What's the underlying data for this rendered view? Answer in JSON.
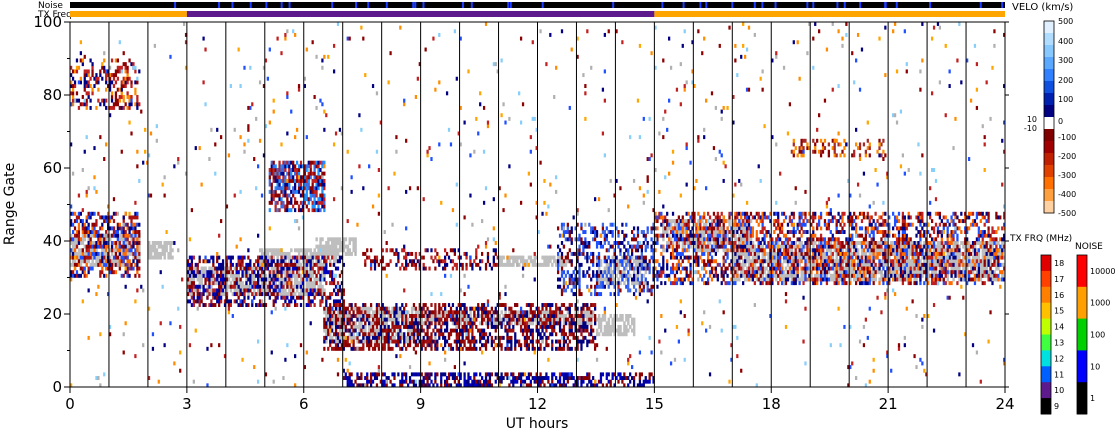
{
  "chart_data": {
    "type": "scatter",
    "subtype": "SuperDARN range-time-velocity plot",
    "title": "",
    "xlabel": "UT hours",
    "ylabel": "Range Gate",
    "xlim": [
      0,
      24
    ],
    "ylim": [
      0,
      100
    ],
    "xticks": [
      "0",
      "3",
      "6",
      "9",
      "12",
      "15",
      "18",
      "21",
      "24"
    ],
    "yticks": [
      "0",
      "20",
      "40",
      "60",
      "80",
      "100"
    ],
    "minor_vertical_lines_ut": [
      1,
      2,
      3,
      4,
      5,
      6,
      7,
      8,
      9,
      10,
      11,
      12,
      13,
      14,
      15,
      16,
      17,
      18,
      19,
      20,
      21,
      22,
      23
    ],
    "top_bars": [
      {
        "label": "Noise",
        "segments": [
          {
            "from": 0,
            "to": 24,
            "color": "#000000"
          }
        ]
      },
      {
        "label": "TX Freq",
        "segments": [
          {
            "from": 0,
            "to": 3,
            "color": "#ffa500"
          },
          {
            "from": 3,
            "to": 15,
            "color": "#5c1a8c"
          },
          {
            "from": 15,
            "to": 24,
            "color": "#ffa500"
          }
        ]
      }
    ],
    "ground_scatter_bands": [
      {
        "t0": 0,
        "t1": 1.8,
        "g0": 33,
        "g1": 42
      },
      {
        "t0": 3,
        "t1": 6.5,
        "g0": 25,
        "g1": 33
      },
      {
        "t0": 4.8,
        "t1": 6.8,
        "g0": 33,
        "g1": 38
      },
      {
        "t0": 6.3,
        "t1": 7.3,
        "g0": 36,
        "g1": 41
      },
      {
        "t0": 6.5,
        "t1": 9,
        "g0": 12,
        "g1": 22
      },
      {
        "t0": 9,
        "t1": 13.5,
        "g0": 17,
        "g1": 21
      },
      {
        "t0": 13.5,
        "t1": 14.5,
        "g0": 14,
        "g1": 20
      },
      {
        "t0": 13.5,
        "t1": 14.8,
        "g0": 28,
        "g1": 36
      },
      {
        "t0": 15.2,
        "t1": 17.5,
        "g0": 37,
        "g1": 46
      },
      {
        "t0": 17,
        "t1": 24,
        "g0": 29,
        "g1": 40
      },
      {
        "t0": 2,
        "t1": 2.6,
        "g0": 35,
        "g1": 40
      },
      {
        "t0": 11,
        "t1": 12.8,
        "g0": 33,
        "g1": 36
      }
    ],
    "scatter_regions": [
      {
        "t0": 0,
        "t1": 1.8,
        "g0": 30,
        "g1": 48,
        "density": 0.5,
        "colors": [
          "#8b0000",
          "#aa1111",
          "#000080",
          "#1e50ff",
          "#ff6a00"
        ]
      },
      {
        "t0": 0,
        "t1": 1.8,
        "g0": 76,
        "g1": 90,
        "density": 0.35,
        "colors": [
          "#8b0000",
          "#000080",
          "#ff8c00",
          "#c02020"
        ]
      },
      {
        "t0": 3,
        "t1": 7,
        "g0": 22,
        "g1": 36,
        "density": 0.45,
        "colors": [
          "#8b0000",
          "#000080",
          "#0000c0",
          "#b22222"
        ]
      },
      {
        "t0": 5.1,
        "t1": 6.5,
        "g0": 48,
        "g1": 62,
        "density": 0.7,
        "colors": [
          "#8b0000",
          "#1e90ff",
          "#4169e1",
          "#000080",
          "#c02020"
        ]
      },
      {
        "t0": 6.5,
        "t1": 13.5,
        "g0": 10,
        "g1": 23,
        "density": 0.5,
        "colors": [
          "#8b0000",
          "#000080",
          "#a01010"
        ]
      },
      {
        "t0": 7.5,
        "t1": 11,
        "g0": 32,
        "g1": 38,
        "density": 0.35,
        "colors": [
          "#8b0000",
          "#000080",
          "#c02020"
        ]
      },
      {
        "t0": 12.5,
        "t1": 15,
        "g0": 25,
        "g1": 45,
        "density": 0.4,
        "colors": [
          "#000080",
          "#1e50ff",
          "#8b0000",
          "#4169e1"
        ]
      },
      {
        "t0": 15,
        "t1": 24,
        "g0": 28,
        "g1": 48,
        "density": 0.45,
        "colors": [
          "#8b0000",
          "#000080",
          "#c02020",
          "#1e50ff",
          "#ff6a00"
        ]
      },
      {
        "t0": 7,
        "t1": 15,
        "g0": 0,
        "g1": 4,
        "density": 0.55,
        "colors": [
          "#000080",
          "#8b0000",
          "#0000c0"
        ]
      },
      {
        "t0": 18.5,
        "t1": 21,
        "g0": 63,
        "g1": 68,
        "density": 0.3,
        "colors": [
          "#8b0000",
          "#a52a2a",
          "#ff8c00"
        ]
      },
      {
        "t0": 0,
        "t1": 24,
        "g0": 0,
        "g1": 100,
        "density": 0.02,
        "colors": [
          "#8b0000",
          "#000080",
          "#ff8c00",
          "#ffa500",
          "#87cefa",
          "#b0b0b0",
          "#c02020",
          "#1e50ff"
        ]
      }
    ],
    "velo_colorbar": {
      "title": "VELO (km/s)",
      "tick_labels": [
        "500",
        "400",
        "300",
        "200",
        "100",
        "10",
        "0",
        "-10",
        "-100",
        "-200",
        "-300",
        "-400",
        "-500"
      ],
      "colors_top_to_bottom": [
        "#e0f0ff",
        "#b0dcff",
        "#87c8ff",
        "#5aa8ff",
        "#3080ff",
        "#1050e0",
        "#0020b0",
        "#000080",
        "#ffffff",
        "#800000",
        "#a00000",
        "#c02000",
        "#e04000",
        "#ff7000",
        "#ffa040",
        "#ffd0a0"
      ]
    },
    "txfrq_colorbar": {
      "title": "TX FRQ (MHz)",
      "tick_labels": [
        "18",
        "17",
        "16",
        "15",
        "14",
        "13",
        "12",
        "11",
        "10",
        "9"
      ],
      "colors_top_to_bottom": [
        "#e00000",
        "#ff4000",
        "#ff8000",
        "#ffc000",
        "#c0ff00",
        "#40ff40",
        "#00e0e0",
        "#0060ff",
        "#5c1a8c",
        "#000000"
      ]
    },
    "noise_colorbar": {
      "title": "NOISE",
      "tick_labels": [
        "10000",
        "1000",
        "100",
        "10",
        "1"
      ],
      "colors_top_to_bottom": [
        "#ff0000",
        "#ffa000",
        "#00d000",
        "#0000ff",
        "#000000"
      ]
    },
    "ground_scatter_color": "#bebebe"
  }
}
